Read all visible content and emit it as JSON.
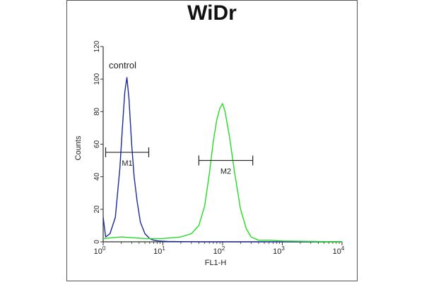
{
  "chart_data": {
    "type": "line",
    "title": "WiDr",
    "xlabel": "FL1-H",
    "ylabel": "Counts",
    "x_scale": "log",
    "xlim": [
      1,
      10000
    ],
    "ylim": [
      0,
      120
    ],
    "x_ticks": [
      {
        "value": 1,
        "base": "10",
        "exp": "0"
      },
      {
        "value": 10,
        "base": "10",
        "exp": "1"
      },
      {
        "value": 100,
        "base": "10",
        "exp": "2"
      },
      {
        "value": 1000,
        "base": "10",
        "exp": "3"
      },
      {
        "value": 10000,
        "base": "10",
        "exp": "4"
      }
    ],
    "y_ticks": [
      0,
      20,
      40,
      60,
      80,
      100,
      120
    ],
    "grid": false,
    "series": [
      {
        "name": "control",
        "color": "#1c2a9a",
        "x": [
          1,
          1.1,
          1.3,
          1.6,
          1.9,
          2.1,
          2.3,
          2.5,
          2.7,
          3.0,
          3.3,
          3.7,
          4.2,
          5.0,
          6.0,
          7.0,
          8.5,
          12,
          50,
          1000,
          10000
        ],
        "y": [
          15,
          3,
          5,
          15,
          45,
          70,
          92,
          101,
          88,
          60,
          40,
          25,
          12,
          5,
          2,
          1,
          0.5,
          0.2,
          0,
          0,
          0
        ]
      },
      {
        "name": "",
        "color": "#22dd22",
        "x": [
          1,
          2,
          5,
          10,
          20,
          30,
          40,
          50,
          60,
          70,
          80,
          90,
          100,
          110,
          130,
          160,
          200,
          250,
          300,
          400,
          600,
          1000,
          10000
        ],
        "y": [
          2,
          3,
          2,
          2,
          3,
          5,
          10,
          22,
          42,
          62,
          75,
          82,
          85,
          80,
          65,
          42,
          20,
          8,
          3,
          1,
          1,
          0.5,
          0
        ]
      }
    ],
    "markers": [
      {
        "label": "M1",
        "x_start": 1.1,
        "x_end": 5.8,
        "y": 55
      },
      {
        "label": "M2",
        "x_start": 40,
        "x_end": 320,
        "y": 50
      }
    ]
  }
}
